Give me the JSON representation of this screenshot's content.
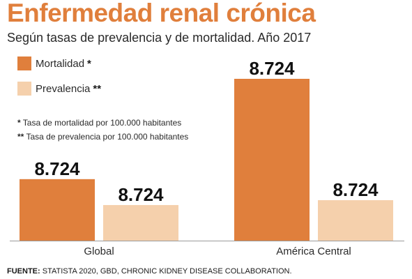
{
  "title": "Enfermedad renal crónica",
  "subtitle": "Según tasas de prevalencia y de mortalidad. Año 2017",
  "colors": {
    "mortalidad": "#e07f3c",
    "prevalencia": "#f5d0ac",
    "title": "#e07f3c"
  },
  "legend": [
    {
      "label": "Mortalidad",
      "mark": "*"
    },
    {
      "label": "Prevalencia",
      "mark": "**"
    }
  ],
  "notes": [
    {
      "mark": "*",
      "text": "Tasa de mortalidad por 100.000 habitantes"
    },
    {
      "mark": "**",
      "text": "Tasa de prevalencia por 100.000 habitantes"
    }
  ],
  "source": {
    "label": "FUENTE:",
    "text": "STATISTA 2020, GBD, CHRONIC KIDNEY DISEASE COLLABORATION."
  },
  "chart_data": {
    "type": "bar",
    "categories": [
      "Global",
      "América Central"
    ],
    "series": [
      {
        "name": "Mortalidad",
        "values": [
          8724,
          8724
        ],
        "labels": [
          "8.724",
          "8.724"
        ]
      },
      {
        "name": "Prevalencia",
        "values": [
          8724,
          8724
        ],
        "labels": [
          "8.724",
          "8.724"
        ]
      }
    ],
    "bar_levels": [
      [
        0.38,
        1.0
      ],
      [
        0.22,
        0.25
      ]
    ],
    "legend_position": "top-left",
    "grid": false
  }
}
